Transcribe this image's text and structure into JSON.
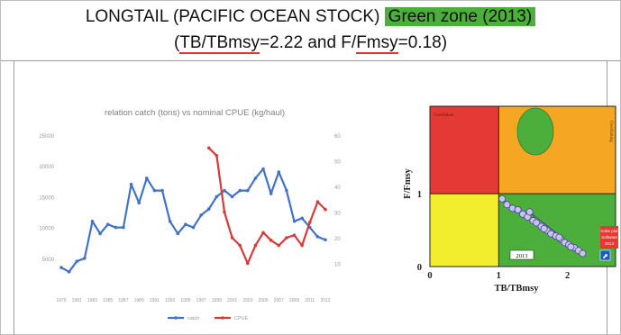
{
  "header": {
    "title_main": "LONGTAIL (PACIFIC OCEAN STOCK)",
    "title_zone": "Green zone (2013)",
    "subtitle_open": "(",
    "subtitle_tb": "TB/TBmsy",
    "subtitle_mid": "=2.22 and F/",
    "subtitle_fm": "Fmsy",
    "subtitle_end": "=0.18)"
  },
  "colors": {
    "catch": "#4472c4",
    "cpue": "#d63a3a",
    "zone_red": "#e53935",
    "zone_orange": "#f5a623",
    "zone_yellow": "#f2ee2e",
    "zone_green": "#4caf3b",
    "point_fill": "#c9c4ee"
  },
  "chart_data": [
    {
      "type": "line",
      "title": "relation catch (tons) vs nominal CPUE (kg/haul)",
      "x": [
        "1979",
        "1980",
        "1981",
        "1982",
        "1983",
        "1984",
        "1985",
        "1986",
        "1987",
        "1988",
        "1989",
        "1990",
        "1991",
        "1992",
        "1993",
        "1994",
        "1995",
        "1996",
        "1997",
        "1998",
        "1999",
        "2000",
        "2001",
        "2002",
        "2003",
        "2004",
        "2005",
        "2006",
        "2007",
        "2008",
        "2009",
        "2010",
        "2011",
        "2012",
        "2013"
      ],
      "x_tick_labels": [
        "1979",
        "1981",
        "1983",
        "1985",
        "1987",
        "1989",
        "1991",
        "1993",
        "1995",
        "1997",
        "1999",
        "2001",
        "2003",
        "2005",
        "2007",
        "2009",
        "2011",
        "2013"
      ],
      "ylim_left": [
        0,
        25000
      ],
      "yticks_left": [
        "5000",
        "10000",
        "15000",
        "20000",
        "25000"
      ],
      "ylim_right": [
        0,
        60
      ],
      "yticks_right": [
        "10",
        "20",
        "30",
        "40",
        "50",
        "60"
      ],
      "series": [
        {
          "name": "catch",
          "axis": "left",
          "values": [
            3500,
            2800,
            4500,
            5000,
            11000,
            9000,
            10500,
            10000,
            10000,
            17000,
            14000,
            18000,
            16000,
            16000,
            11000,
            9000,
            10500,
            10000,
            12000,
            13000,
            15000,
            16000,
            15000,
            16000,
            16000,
            18000,
            19500,
            15500,
            19000,
            16000,
            11000,
            11500,
            10000,
            8500,
            8000
          ]
        },
        {
          "name": "CPUE",
          "axis": "right",
          "values": [
            null,
            null,
            null,
            null,
            null,
            null,
            null,
            null,
            null,
            null,
            null,
            null,
            null,
            null,
            null,
            null,
            null,
            null,
            null,
            55,
            52,
            30,
            20,
            17,
            10,
            17,
            22,
            19,
            17,
            20,
            21,
            17,
            26,
            34,
            31
          ]
        }
      ],
      "legend": [
        "catch",
        "CPUE"
      ],
      "legend_position": "bottom",
      "grid": false
    },
    {
      "type": "scatter",
      "xlabel": "TB/TBmsy",
      "ylabel": "F/Fmsy",
      "xticks": [
        "0",
        "1",
        "2"
      ],
      "yticks": [
        "0",
        "1"
      ],
      "zone_labels": {
        "top_left": "Overfished",
        "top_right": "Overfishing"
      },
      "point_label": "2013",
      "software_label": [
        "Kobe plot",
        "Software",
        "2013"
      ],
      "points": [
        {
          "x": 1.05,
          "y": 0.93
        },
        {
          "x": 1.12,
          "y": 0.85
        },
        {
          "x": 1.2,
          "y": 0.8
        },
        {
          "x": 1.28,
          "y": 0.78
        },
        {
          "x": 1.35,
          "y": 0.72
        },
        {
          "x": 1.42,
          "y": 0.68
        },
        {
          "x": 1.5,
          "y": 0.63
        },
        {
          "x": 1.55,
          "y": 0.6
        },
        {
          "x": 1.62,
          "y": 0.55
        },
        {
          "x": 1.7,
          "y": 0.5
        },
        {
          "x": 1.76,
          "y": 0.45
        },
        {
          "x": 1.83,
          "y": 0.42
        },
        {
          "x": 1.9,
          "y": 0.38
        },
        {
          "x": 1.96,
          "y": 0.33
        },
        {
          "x": 2.02,
          "y": 0.3
        },
        {
          "x": 2.1,
          "y": 0.26
        },
        {
          "x": 2.16,
          "y": 0.22
        },
        {
          "x": 2.22,
          "y": 0.18
        },
        {
          "x": 1.45,
          "y": 0.75
        },
        {
          "x": 1.66,
          "y": 0.52
        },
        {
          "x": 1.88,
          "y": 0.4
        },
        {
          "x": 2.05,
          "y": 0.27
        }
      ]
    }
  ]
}
